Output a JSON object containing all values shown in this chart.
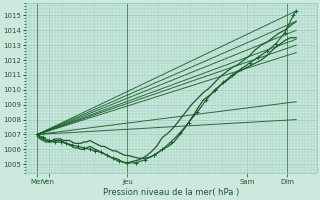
{
  "title": "Pression niveau de la mer( hPa )",
  "ylabel_values": [
    1005,
    1006,
    1007,
    1008,
    1009,
    1010,
    1011,
    1012,
    1013,
    1014,
    1015
  ],
  "ylim": [
    1004.4,
    1015.8
  ],
  "xlim": [
    0,
    100
  ],
  "bg_color": "#cce8df",
  "grid_color": "#99ccbb",
  "line_color": "#1a5c2a",
  "xtick_positions": [
    4,
    8,
    35,
    76,
    90
  ],
  "xtick_labels": [
    "Mer",
    "Ven",
    "Jeu",
    "Sam",
    "Dim"
  ],
  "vline_positions": [
    4,
    35,
    90
  ],
  "straight_lines": [
    [
      4,
      1007.0,
      93,
      1015.3
    ],
    [
      4,
      1007.0,
      93,
      1014.6
    ],
    [
      4,
      1007.0,
      93,
      1014.0
    ],
    [
      4,
      1007.0,
      93,
      1013.4
    ],
    [
      4,
      1007.0,
      93,
      1013.0
    ],
    [
      4,
      1007.0,
      93,
      1012.5
    ],
    [
      4,
      1007.0,
      93,
      1009.2
    ],
    [
      4,
      1007.0,
      93,
      1008.0
    ]
  ],
  "wiggly_x": [
    4,
    5,
    6,
    7,
    8,
    9,
    10,
    11,
    12,
    13,
    14,
    15,
    16,
    17,
    18,
    19,
    20,
    21,
    22,
    23,
    24,
    25,
    26,
    27,
    28,
    29,
    30,
    31,
    32,
    33,
    34,
    35,
    37,
    39,
    41,
    43,
    45,
    47,
    49,
    51,
    53,
    55,
    57,
    59,
    61,
    63,
    65,
    67,
    69,
    71,
    73,
    75,
    77,
    79,
    81,
    83,
    85,
    87,
    89,
    91,
    93
  ],
  "wiggly_y": [
    1007.0,
    1006.8,
    1006.7,
    1006.6,
    1006.5,
    1006.5,
    1006.6,
    1006.6,
    1006.6,
    1006.5,
    1006.4,
    1006.3,
    1006.2,
    1006.1,
    1006.1,
    1006.0,
    1006.0,
    1006.1,
    1006.2,
    1006.1,
    1006.0,
    1005.9,
    1005.8,
    1005.7,
    1005.6,
    1005.5,
    1005.4,
    1005.4,
    1005.3,
    1005.2,
    1005.1,
    1005.1,
    1005.2,
    1005.3,
    1005.5,
    1005.8,
    1006.2,
    1006.8,
    1007.1,
    1007.5,
    1008.0,
    1008.5,
    1009.0,
    1009.4,
    1009.8,
    1010.1,
    1010.5,
    1010.9,
    1011.2,
    1011.5,
    1011.7,
    1012.0,
    1012.3,
    1012.7,
    1013.0,
    1013.2,
    1013.5,
    1013.8,
    1014.0,
    1014.3,
    1014.6
  ],
  "wiggly2_x": [
    4,
    5,
    6,
    7,
    8,
    9,
    10,
    11,
    12,
    13,
    14,
    15,
    16,
    17,
    18,
    19,
    20,
    21,
    22,
    23,
    24,
    25,
    26,
    27,
    28,
    29,
    30,
    31,
    32,
    33,
    34,
    35,
    37,
    39,
    41,
    43,
    45,
    47,
    49,
    51,
    53,
    55,
    57,
    59,
    61,
    63,
    65,
    67,
    69,
    71,
    73,
    75,
    77,
    79,
    81,
    83,
    85,
    87,
    89,
    91,
    93
  ],
  "wiggly2_y": [
    1006.9,
    1006.7,
    1006.6,
    1006.5,
    1006.5,
    1006.6,
    1006.7,
    1006.7,
    1006.7,
    1006.6,
    1006.6,
    1006.6,
    1006.5,
    1006.4,
    1006.4,
    1006.4,
    1006.5,
    1006.5,
    1006.6,
    1006.5,
    1006.4,
    1006.3,
    1006.2,
    1006.2,
    1006.1,
    1006.0,
    1005.9,
    1005.9,
    1005.8,
    1005.7,
    1005.6,
    1005.6,
    1005.5,
    1005.4,
    1005.4,
    1005.5,
    1005.7,
    1006.0,
    1006.2,
    1006.5,
    1007.0,
    1007.5,
    1008.1,
    1008.7,
    1009.3,
    1009.6,
    1009.9,
    1010.3,
    1010.6,
    1010.9,
    1011.2,
    1011.4,
    1011.6,
    1011.8,
    1012.0,
    1012.3,
    1012.7,
    1013.0,
    1013.3,
    1013.5,
    1013.5
  ],
  "dotted_x": [
    4,
    6,
    8,
    10,
    12,
    14,
    16,
    18,
    20,
    22,
    24,
    26,
    28,
    30,
    32,
    35,
    38,
    41,
    44,
    47,
    50,
    53,
    56,
    59,
    62,
    65,
    68,
    71,
    74,
    77,
    80,
    83,
    86,
    89,
    92,
    93
  ],
  "dotted_y": [
    1007.0,
    1006.8,
    1006.6,
    1006.5,
    1006.5,
    1006.4,
    1006.3,
    1006.2,
    1006.1,
    1006.0,
    1005.9,
    1005.8,
    1005.6,
    1005.4,
    1005.2,
    1005.1,
    1005.1,
    1005.3,
    1005.6,
    1006.0,
    1006.5,
    1007.1,
    1007.8,
    1008.5,
    1009.3,
    1010.0,
    1010.5,
    1011.0,
    1011.4,
    1011.8,
    1012.2,
    1012.6,
    1013.1,
    1013.8,
    1015.0,
    1015.3
  ]
}
